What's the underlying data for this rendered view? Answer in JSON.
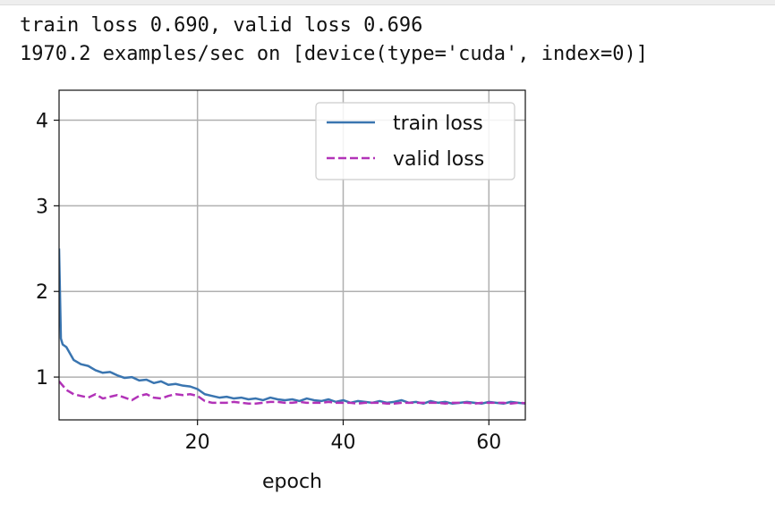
{
  "output_lines": [
    "train loss 0.690, valid loss 0.696",
    "1970.2 examples/sec on [device(type='cuda', index=0)]"
  ],
  "chart_data": {
    "type": "line",
    "xlabel": "epoch",
    "xlim": [
      1,
      65
    ],
    "ylim": [
      0.5,
      4.35
    ],
    "xticks": [
      20,
      40,
      60
    ],
    "yticks": [
      1,
      2,
      3,
      4
    ],
    "grid": true,
    "legend": "upper right",
    "series": [
      {
        "name": "train loss",
        "color": "#3a75b0",
        "style": "solid",
        "x": [
          1,
          1.25,
          1.5,
          2,
          3,
          4,
          5,
          6,
          7,
          8,
          9,
          10,
          11,
          12,
          13,
          14,
          15,
          16,
          17,
          18,
          19,
          20,
          21,
          22,
          23,
          24,
          25,
          26,
          27,
          28,
          29,
          30,
          31,
          32,
          33,
          34,
          35,
          36,
          37,
          38,
          39,
          40,
          41,
          42,
          43,
          44,
          45,
          46,
          47,
          48,
          49,
          50,
          51,
          52,
          53,
          54,
          55,
          56,
          57,
          58,
          59,
          60,
          61,
          62,
          63,
          64,
          65
        ],
        "values": [
          2.5,
          1.45,
          1.38,
          1.35,
          1.2,
          1.15,
          1.13,
          1.08,
          1.05,
          1.06,
          1.02,
          0.99,
          1.0,
          0.96,
          0.97,
          0.93,
          0.95,
          0.91,
          0.92,
          0.9,
          0.89,
          0.86,
          0.8,
          0.78,
          0.76,
          0.77,
          0.75,
          0.76,
          0.74,
          0.75,
          0.73,
          0.76,
          0.74,
          0.73,
          0.74,
          0.72,
          0.75,
          0.73,
          0.72,
          0.74,
          0.71,
          0.73,
          0.7,
          0.72,
          0.71,
          0.7,
          0.72,
          0.7,
          0.71,
          0.73,
          0.7,
          0.71,
          0.69,
          0.72,
          0.7,
          0.71,
          0.69,
          0.7,
          0.71,
          0.7,
          0.69,
          0.71,
          0.7,
          0.69,
          0.71,
          0.7,
          0.69
        ]
      },
      {
        "name": "valid loss",
        "color": "#b233b8",
        "style": "dashed",
        "x": [
          1,
          2,
          3,
          4,
          5,
          6,
          7,
          8,
          9,
          10,
          11,
          12,
          13,
          14,
          15,
          16,
          17,
          18,
          19,
          20,
          21,
          22,
          23,
          24,
          25,
          26,
          27,
          28,
          29,
          30,
          31,
          32,
          33,
          34,
          35,
          36,
          37,
          38,
          39,
          40,
          41,
          42,
          43,
          44,
          45,
          46,
          47,
          48,
          49,
          50,
          51,
          52,
          53,
          54,
          55,
          56,
          57,
          58,
          59,
          60,
          61,
          62,
          63,
          64,
          65
        ],
        "values": [
          0.95,
          0.85,
          0.8,
          0.78,
          0.76,
          0.8,
          0.75,
          0.77,
          0.79,
          0.76,
          0.73,
          0.78,
          0.8,
          0.76,
          0.75,
          0.78,
          0.8,
          0.79,
          0.8,
          0.78,
          0.72,
          0.7,
          0.7,
          0.7,
          0.71,
          0.7,
          0.69,
          0.69,
          0.7,
          0.71,
          0.71,
          0.7,
          0.7,
          0.71,
          0.7,
          0.7,
          0.7,
          0.71,
          0.7,
          0.7,
          0.7,
          0.69,
          0.7,
          0.7,
          0.7,
          0.69,
          0.69,
          0.7,
          0.7,
          0.7,
          0.7,
          0.7,
          0.7,
          0.69,
          0.7,
          0.7,
          0.7,
          0.69,
          0.7,
          0.7,
          0.7,
          0.7,
          0.69,
          0.7,
          0.696
        ]
      }
    ]
  }
}
